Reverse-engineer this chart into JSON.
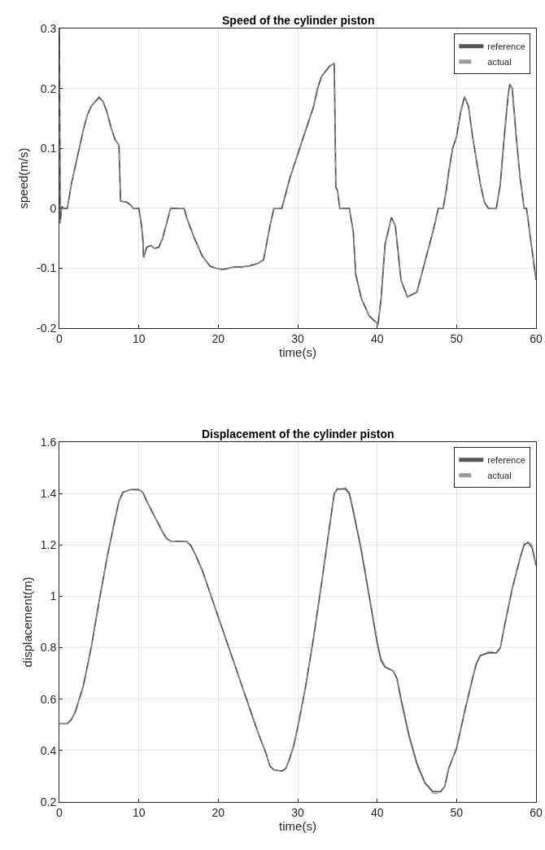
{
  "chart_data": [
    {
      "type": "line",
      "title": "Speed of the cylinder piston",
      "xlabel": "time(s)",
      "ylabel": "speed(m/s)",
      "xlim": [
        0,
        60
      ],
      "xticks": [
        0,
        10,
        20,
        30,
        40,
        50,
        60
      ],
      "ylim": [
        -0.2,
        0.3
      ],
      "yticks": [
        -0.2,
        -0.1,
        0,
        0.1,
        0.2,
        0.3
      ],
      "grid": true,
      "legend": "top right",
      "series": [
        {
          "name": "reference",
          "color": "#555555",
          "line_style": "solid",
          "x": [
            0,
            0.1,
            0.3,
            0.5,
            1,
            1.5,
            2,
            2.5,
            3,
            3.5,
            4,
            4.5,
            5,
            5.5,
            6,
            6.5,
            7,
            7.5,
            7.7,
            8.5,
            9,
            9.3,
            10,
            10.3,
            10.5,
            10.6,
            11,
            11.5,
            12,
            12.5,
            13,
            13.5,
            14,
            15,
            15.7,
            16,
            17,
            18,
            19,
            20,
            20.5,
            21,
            22,
            23,
            24,
            25,
            25.7,
            26,
            26.5,
            27,
            28,
            28.2,
            29,
            30,
            31,
            32,
            32.5,
            33,
            34,
            34.6,
            34.8,
            35,
            35.3,
            36.5,
            37,
            37.3,
            38,
            39,
            40,
            40.1,
            40.5,
            41,
            41.8,
            42.3,
            43,
            43.8,
            45,
            46,
            47,
            47.7,
            48.3,
            48.7,
            49,
            49.5,
            50,
            50.5,
            51,
            51.5,
            52,
            53,
            53.5,
            54,
            55,
            55.5,
            56,
            56.5,
            56.7,
            57,
            57.5,
            58,
            58.5,
            58.8,
            59.5,
            60
          ],
          "values": [
            0.3,
            -0.025,
            0.003,
            0,
            0,
            0.04,
            0.07,
            0.1,
            0.13,
            0.155,
            0.17,
            0.178,
            0.185,
            0.178,
            0.16,
            0.135,
            0.115,
            0.105,
            0.012,
            0.01,
            0.005,
            0,
            0,
            -0.025,
            -0.05,
            -0.082,
            -0.065,
            -0.062,
            -0.067,
            -0.065,
            -0.05,
            -0.025,
            0,
            0,
            0,
            -0.015,
            -0.05,
            -0.08,
            -0.097,
            -0.101,
            -0.102,
            -0.101,
            -0.098,
            -0.098,
            -0.096,
            -0.092,
            -0.086,
            -0.065,
            -0.03,
            0,
            0,
            0.01,
            0.05,
            0.09,
            0.13,
            0.17,
            0.2,
            0.22,
            0.237,
            0.242,
            0.035,
            0.03,
            0,
            0,
            -0.04,
            -0.11,
            -0.15,
            -0.18,
            -0.192,
            -0.195,
            -0.15,
            -0.06,
            -0.015,
            -0.03,
            -0.12,
            -0.148,
            -0.14,
            -0.09,
            -0.04,
            0,
            0,
            0.03,
            0.06,
            0.1,
            0.12,
            0.16,
            0.186,
            0.17,
            0.12,
            0.04,
            0.01,
            0,
            0,
            0.04,
            0.12,
            0.19,
            0.207,
            0.2,
            0.12,
            0.05,
            0,
            0,
            -0.07,
            -0.12
          ]
        },
        {
          "name": "actual",
          "color": "#999999",
          "line_style": "dashed",
          "x": [
            0,
            0.1,
            0.3,
            0.5,
            1,
            1.5,
            2,
            2.5,
            3,
            3.5,
            4,
            4.5,
            5,
            5.5,
            6,
            6.5,
            7,
            7.5,
            7.7,
            8.5,
            9,
            9.3,
            10,
            10.3,
            10.5,
            10.6,
            11,
            11.5,
            12,
            12.5,
            13,
            13.5,
            14,
            15,
            15.7,
            16,
            17,
            18,
            19,
            20,
            20.5,
            21,
            22,
            23,
            24,
            25,
            25.7,
            26,
            26.5,
            27,
            28,
            28.2,
            29,
            30,
            31,
            32,
            32.5,
            33,
            34,
            34.6,
            34.8,
            35,
            35.3,
            36.5,
            37,
            37.3,
            38,
            39,
            40,
            40.1,
            40.5,
            41,
            41.8,
            42.3,
            43,
            43.8,
            45,
            46,
            47,
            47.7,
            48.3,
            48.7,
            49,
            49.5,
            50,
            50.5,
            51,
            51.5,
            52,
            53,
            53.5,
            54,
            55,
            55.5,
            56,
            56.5,
            56.7,
            57,
            57.5,
            58,
            58.5,
            58.8,
            59.5,
            60
          ],
          "values": [
            0.3,
            -0.025,
            0.003,
            0,
            0,
            0.04,
            0.07,
            0.1,
            0.13,
            0.155,
            0.17,
            0.178,
            0.185,
            0.178,
            0.16,
            0.135,
            0.115,
            0.105,
            0.012,
            0.01,
            0.005,
            0,
            0,
            -0.025,
            -0.05,
            -0.082,
            -0.065,
            -0.062,
            -0.067,
            -0.065,
            -0.05,
            -0.025,
            0,
            0,
            0,
            -0.015,
            -0.05,
            -0.08,
            -0.097,
            -0.101,
            -0.102,
            -0.101,
            -0.098,
            -0.098,
            -0.096,
            -0.092,
            -0.086,
            -0.065,
            -0.03,
            0,
            0,
            0.01,
            0.05,
            0.09,
            0.13,
            0.17,
            0.2,
            0.22,
            0.237,
            0.242,
            0.04,
            0.03,
            0,
            0,
            -0.04,
            -0.105,
            -0.15,
            -0.18,
            -0.192,
            -0.195,
            -0.15,
            -0.06,
            -0.015,
            -0.03,
            -0.12,
            -0.148,
            -0.14,
            -0.09,
            -0.04,
            0,
            0,
            0.03,
            0.06,
            0.1,
            0.12,
            0.16,
            0.186,
            0.17,
            0.12,
            0.04,
            0.01,
            0,
            0,
            0.04,
            0.12,
            0.19,
            0.207,
            0.2,
            0.12,
            0.05,
            0,
            0,
            -0.07,
            -0.12
          ]
        }
      ]
    },
    {
      "type": "line",
      "title": "Displacement of the cylinder piston",
      "xlabel": "time(s)",
      "ylabel": "displacement(m)",
      "xlim": [
        0,
        60
      ],
      "xticks": [
        0,
        10,
        20,
        30,
        40,
        50,
        60
      ],
      "ylim": [
        0.2,
        1.6
      ],
      "yticks": [
        0.2,
        0.4,
        0.6,
        0.8,
        1,
        1.2,
        1.4,
        1.6
      ],
      "grid": true,
      "legend": "top right",
      "series": [
        {
          "name": "reference",
          "color": "#555555",
          "line_style": "solid",
          "x": [
            0,
            1,
            1.5,
            2,
            3,
            4,
            5,
            6,
            7,
            7.5,
            8,
            9,
            10,
            10.5,
            11,
            12,
            13,
            13.5,
            14,
            16,
            16.5,
            17,
            18,
            19,
            20,
            21,
            22,
            23,
            24,
            25,
            26,
            26.5,
            27,
            28,
            28.5,
            29,
            29.5,
            30,
            31,
            32,
            33,
            34,
            34.6,
            35,
            36,
            36.5,
            37,
            38,
            39,
            40,
            40.5,
            41,
            42,
            42.5,
            43,
            44,
            45,
            46,
            47,
            48,
            48.5,
            49,
            50,
            51,
            52,
            52.5,
            53,
            54,
            55,
            55.5,
            56,
            57,
            58,
            58.5,
            59,
            59.5,
            60
          ],
          "values": [
            0.505,
            0.505,
            0.52,
            0.55,
            0.65,
            0.8,
            0.98,
            1.15,
            1.3,
            1.37,
            1.405,
            1.415,
            1.415,
            1.405,
            1.37,
            1.31,
            1.25,
            1.225,
            1.215,
            1.213,
            1.2,
            1.17,
            1.1,
            1.01,
            0.92,
            0.83,
            0.74,
            0.65,
            0.56,
            0.47,
            0.39,
            0.34,
            0.325,
            0.32,
            0.33,
            0.37,
            0.42,
            0.49,
            0.65,
            0.84,
            1.05,
            1.27,
            1.4,
            1.417,
            1.418,
            1.4,
            1.33,
            1.18,
            1,
            0.82,
            0.75,
            0.725,
            0.71,
            0.68,
            0.6,
            0.46,
            0.35,
            0.275,
            0.24,
            0.24,
            0.26,
            0.33,
            0.41,
            0.55,
            0.68,
            0.74,
            0.77,
            0.78,
            0.78,
            0.8,
            0.88,
            1.03,
            1.15,
            1.2,
            1.21,
            1.19,
            1.12
          ]
        },
        {
          "name": "actual",
          "color": "#999999",
          "line_style": "dashed",
          "x": [
            0,
            1,
            1.5,
            2,
            3,
            4,
            5,
            6,
            7,
            7.5,
            8,
            9,
            10,
            10.5,
            11,
            12,
            13,
            13.5,
            14,
            16,
            16.5,
            17,
            18,
            19,
            20,
            21,
            22,
            23,
            24,
            25,
            26,
            26.5,
            27,
            28,
            28.5,
            29,
            29.5,
            30,
            31,
            32,
            33,
            34,
            34.6,
            35,
            36,
            36.5,
            37,
            38,
            39,
            40,
            40.5,
            41,
            42,
            42.5,
            43,
            44,
            45,
            46,
            47,
            48,
            48.5,
            49,
            50,
            51,
            52,
            52.5,
            53,
            54,
            55,
            55.5,
            56,
            57,
            58,
            58.5,
            59,
            59.5,
            60
          ],
          "values": [
            0.505,
            0.505,
            0.52,
            0.55,
            0.65,
            0.8,
            0.98,
            1.15,
            1.3,
            1.37,
            1.405,
            1.415,
            1.415,
            1.405,
            1.37,
            1.31,
            1.25,
            1.225,
            1.215,
            1.213,
            1.2,
            1.17,
            1.1,
            1.01,
            0.92,
            0.83,
            0.74,
            0.65,
            0.56,
            0.47,
            0.39,
            0.34,
            0.325,
            0.32,
            0.33,
            0.37,
            0.42,
            0.49,
            0.65,
            0.84,
            1.05,
            1.27,
            1.4,
            1.425,
            1.425,
            1.405,
            1.34,
            1.19,
            1.01,
            0.83,
            0.76,
            0.73,
            0.71,
            0.68,
            0.59,
            0.45,
            0.34,
            0.27,
            0.233,
            0.235,
            0.26,
            0.33,
            0.41,
            0.55,
            0.68,
            0.745,
            0.775,
            0.785,
            0.785,
            0.8,
            0.88,
            1.03,
            1.15,
            1.21,
            1.22,
            1.2,
            1.12
          ]
        }
      ]
    }
  ]
}
